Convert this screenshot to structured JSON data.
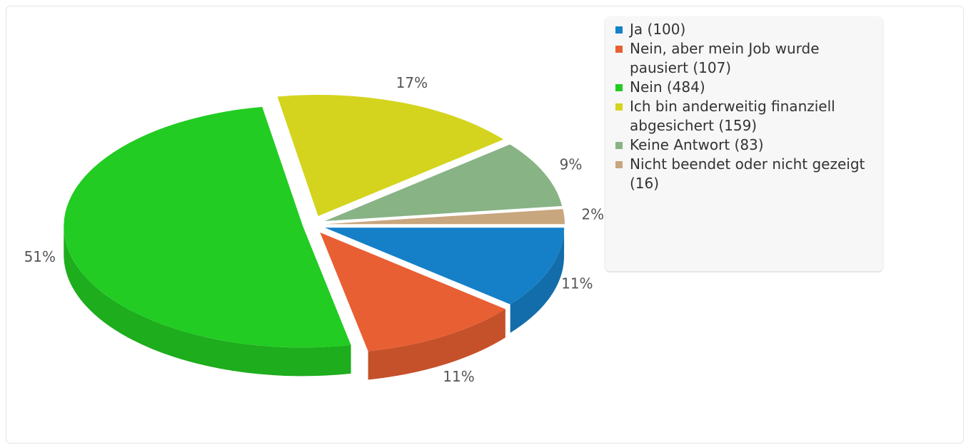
{
  "chart_data": {
    "type": "pie",
    "categories": [
      "Ja (100)",
      "Nein, aber mein Job wurde pausiert (107)",
      "Nein (484)",
      "Ich bin anderweitig finanziell abgesichert (159)",
      "Keine Antwort (83)",
      "Nicht beendet oder nicht gezeigt (16)"
    ],
    "values": [
      11,
      11,
      51,
      17,
      9,
      2
    ],
    "value_labels": [
      "11%",
      "11%",
      "51%",
      "17%",
      "9%",
      "2%"
    ],
    "colors": [
      "#1580c8",
      "#e85f33",
      "#22cc22",
      "#d4d41e",
      "#88b385",
      "#c8a67e"
    ],
    "legend": "top-right"
  }
}
